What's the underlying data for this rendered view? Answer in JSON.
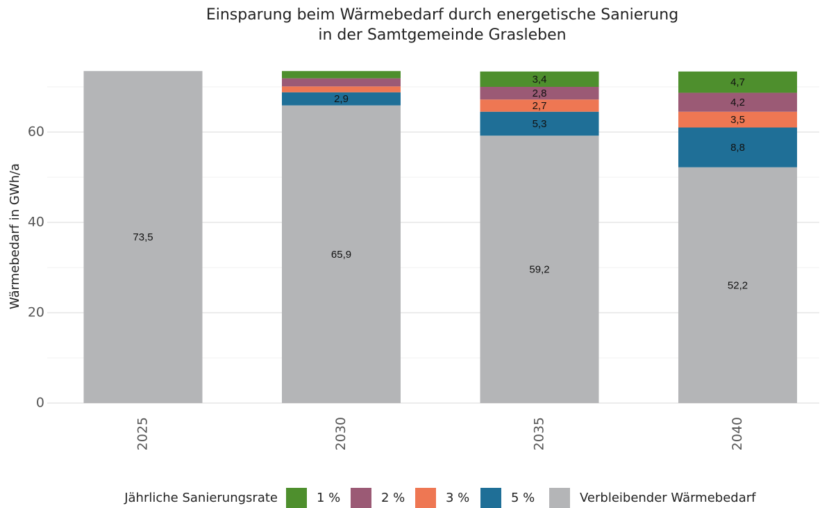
{
  "chart_data": {
    "type": "stacked_bar",
    "title": [
      "Einsparung beim Wärmebedarf durch energetische Sanierung",
      "in der Samtgemeinde Grasleben"
    ],
    "y_label": "Wärmebedarf in GWh/a",
    "legend_title": "Jährliche Sanierungsrate",
    "categories": [
      "2025",
      "2030",
      "2035",
      "2040"
    ],
    "series": [
      {
        "name": "1 %",
        "color": "#4e8f2d",
        "values": [
          0,
          1.6,
          3.4,
          4.7
        ],
        "value_labels": [
          null,
          null,
          "3,4",
          "4,7"
        ]
      },
      {
        "name": "2 %",
        "color": "#9b5a75",
        "values": [
          0,
          1.8,
          2.8,
          4.2
        ],
        "value_labels": [
          null,
          null,
          "2,8",
          "4,2"
        ]
      },
      {
        "name": "3 %",
        "color": "#ee7753",
        "values": [
          0,
          1.3,
          2.7,
          3.5
        ],
        "value_labels": [
          null,
          null,
          "2,7",
          "3,5"
        ]
      },
      {
        "name": "5 %",
        "color": "#1f6f97",
        "values": [
          0,
          2.9,
          5.3,
          8.8
        ],
        "value_labels": [
          null,
          "2,9",
          "5,3",
          "8,8"
        ]
      },
      {
        "name": "Verbleibender Wärmebedarf",
        "color": "#b4b5b7",
        "values": [
          73.5,
          65.9,
          59.2,
          52.2
        ],
        "value_labels": [
          "73,5",
          "65,9",
          "59,2",
          "52,2"
        ]
      }
    ],
    "ylim": [
      0,
      74
    ],
    "yticks": [
      0,
      20,
      40,
      60
    ],
    "yticks_minor": [
      10,
      30,
      50,
      70
    ],
    "grid": true,
    "legend": "bottom"
  }
}
